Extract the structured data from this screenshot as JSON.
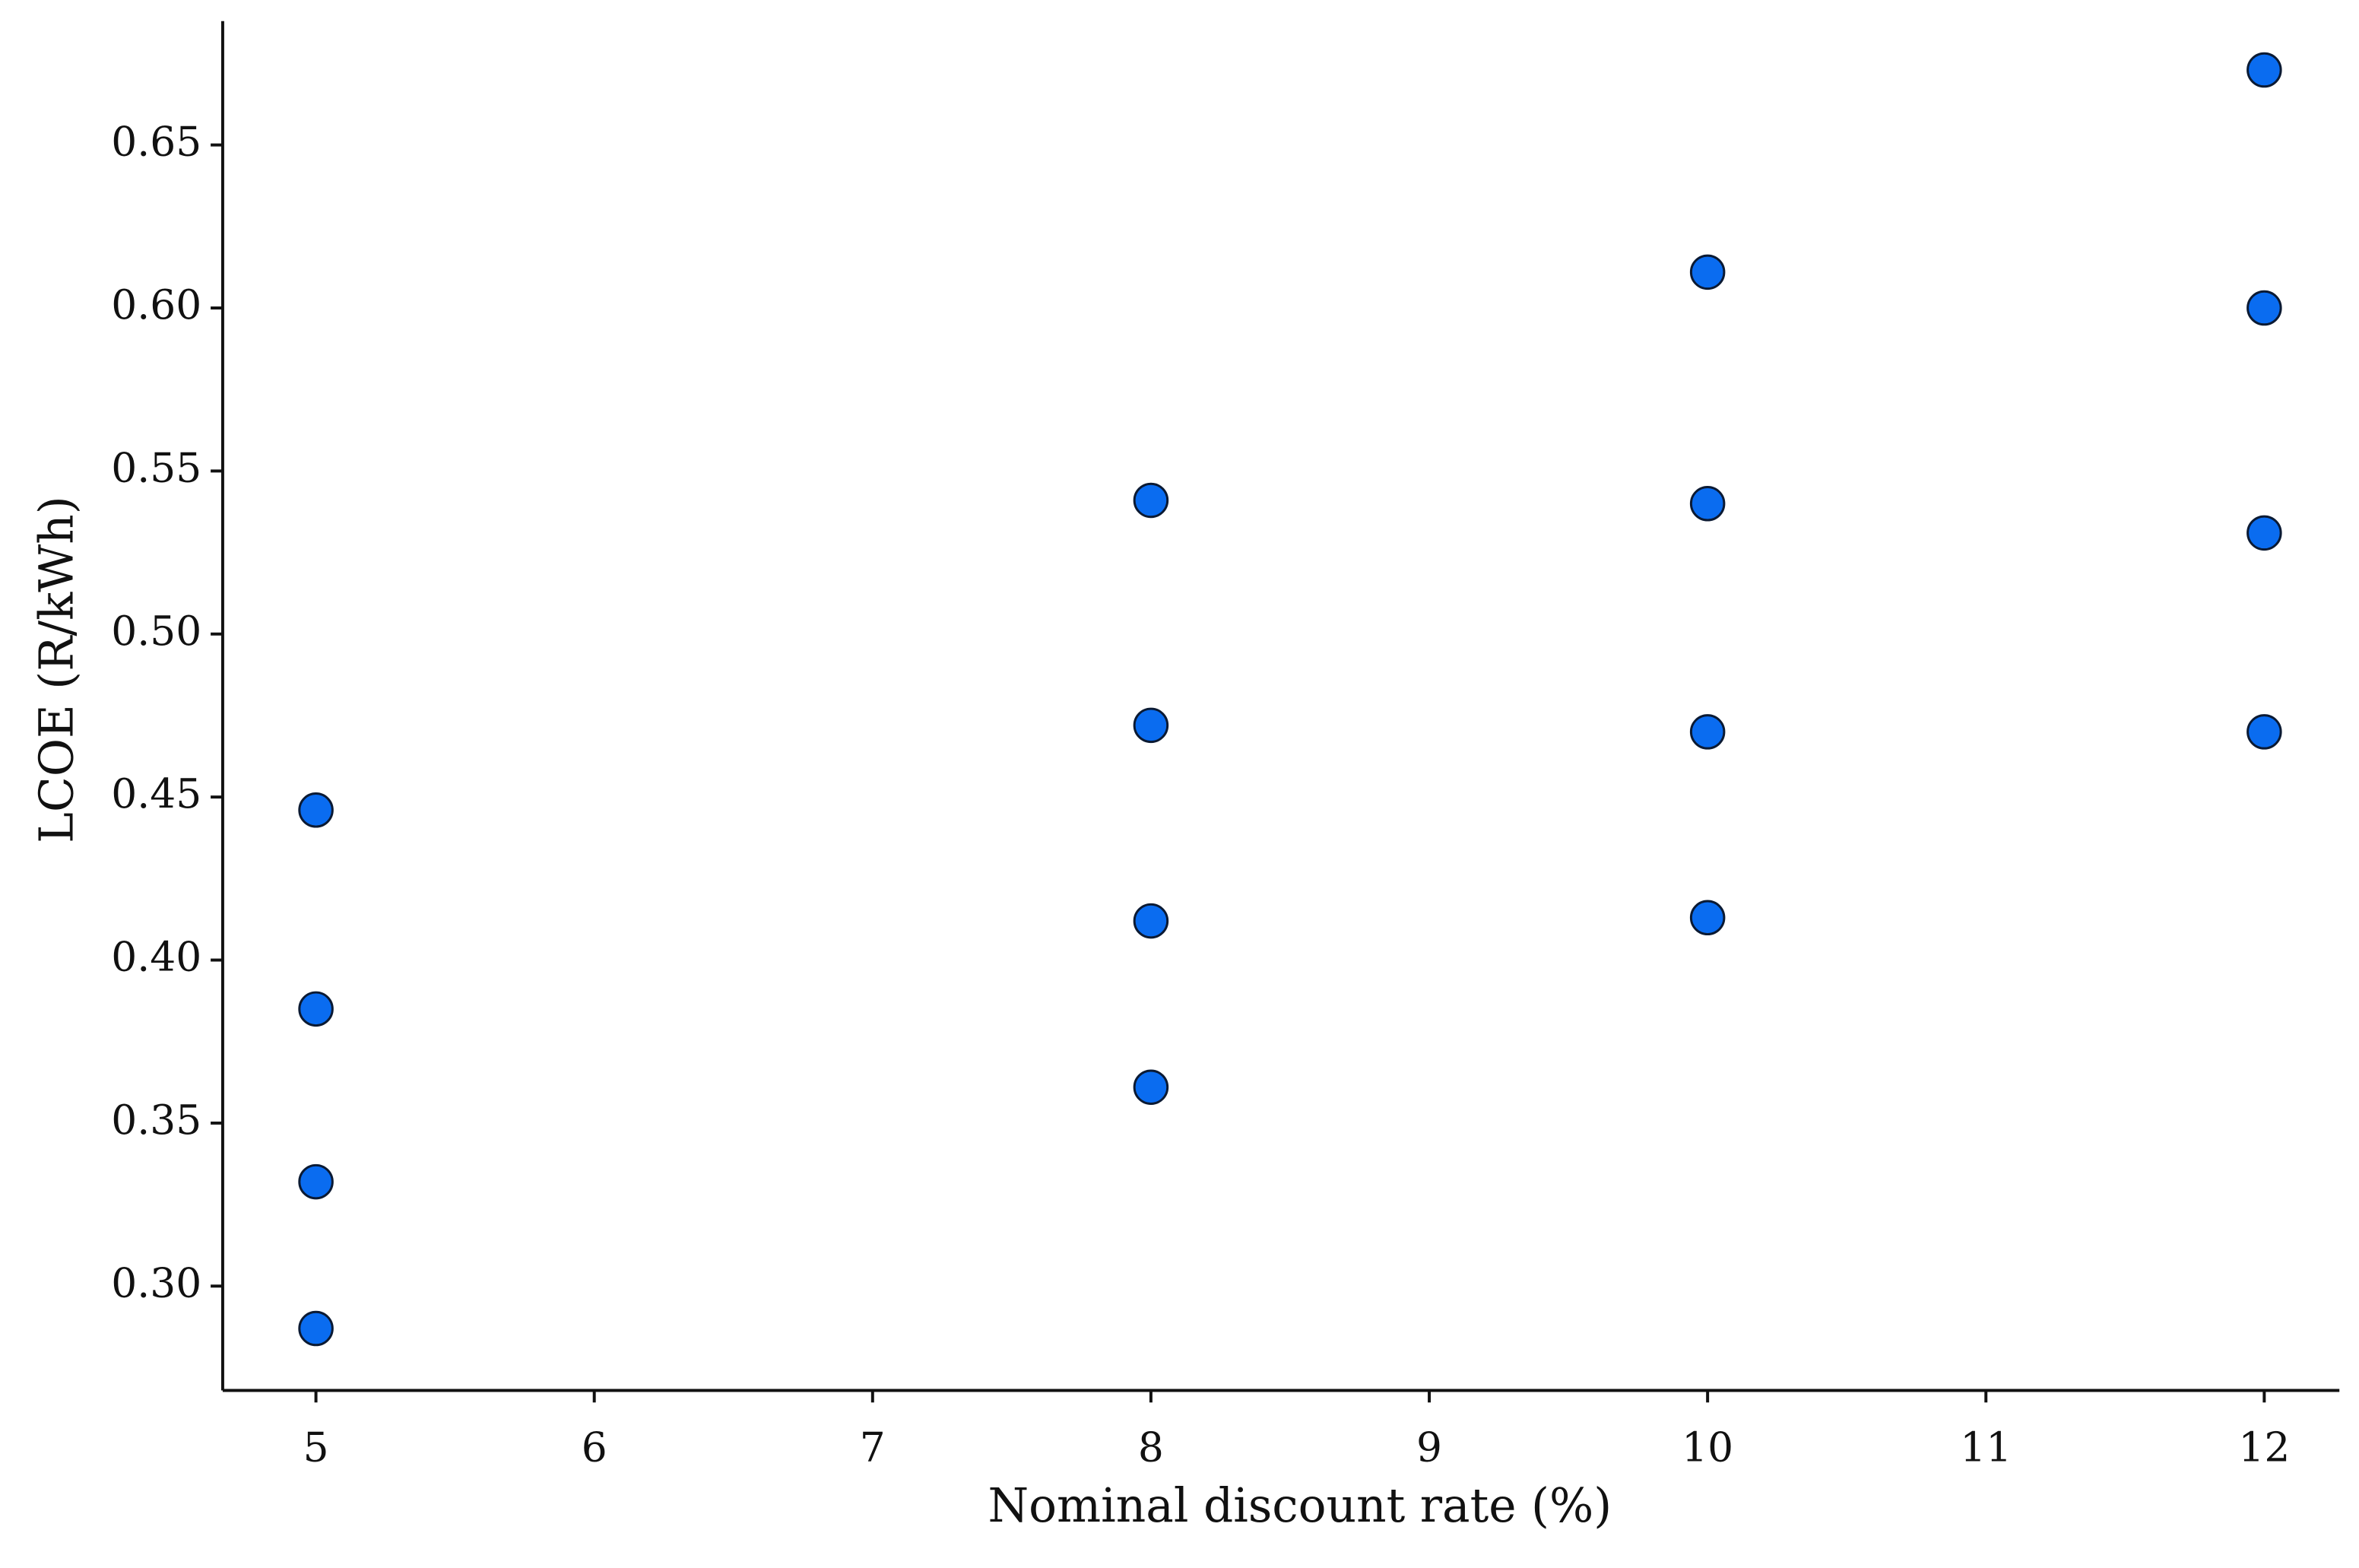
{
  "chart_data": {
    "type": "scatter",
    "x_label": "Nominal discount rate (%)",
    "y_label": "LCOE (R/kWh)",
    "x": [
      5,
      5,
      5,
      5,
      8,
      8,
      8,
      8,
      10,
      10,
      10,
      10,
      12,
      12,
      12,
      12
    ],
    "values": [
      0.446,
      0.385,
      0.332,
      0.287,
      0.541,
      0.472,
      0.412,
      0.361,
      0.611,
      0.54,
      0.47,
      0.413,
      0.673,
      0.6,
      0.531,
      0.47
    ],
    "color": "#0a6cf0",
    "xlim": [
      4.665,
      12.27
    ],
    "ylim": [
      0.268,
      0.688
    ],
    "xticks": [
      5,
      6,
      7,
      8,
      9,
      10,
      11,
      12
    ],
    "yticks": [
      {
        "value": 0.3,
        "label": "0.30"
      },
      {
        "value": 0.35,
        "label": "0.35"
      },
      {
        "value": 0.4,
        "label": "0.40"
      },
      {
        "value": 0.45,
        "label": "0.45"
      },
      {
        "value": 0.5,
        "label": "0.50"
      },
      {
        "value": 0.55,
        "label": "0.55"
      },
      {
        "value": 0.6,
        "label": "0.60"
      },
      {
        "value": 0.65,
        "label": "0.65"
      }
    ]
  }
}
